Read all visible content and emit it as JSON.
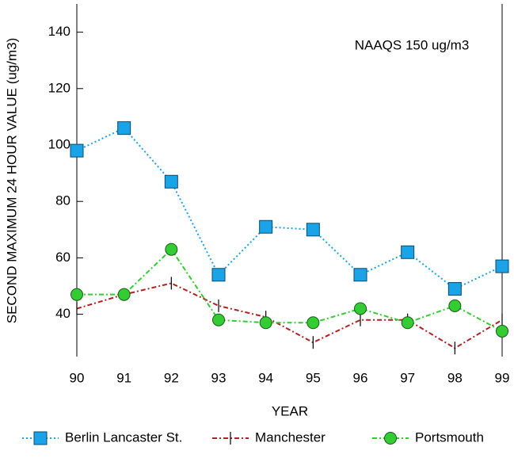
{
  "chart_data": {
    "type": "line",
    "y_label": "SECOND MAXIMUM 24 HOUR VALUE (ug/m3)",
    "x_label": "YEAR",
    "annotation": "NAAQS 150 ug/m3",
    "x": [
      90,
      91,
      92,
      93,
      94,
      95,
      96,
      97,
      98,
      99
    ],
    "xlim": [
      90,
      99
    ],
    "xticks": [
      90,
      91,
      92,
      93,
      94,
      95,
      96,
      97,
      98,
      99
    ],
    "ylim": [
      25,
      150
    ],
    "yticks": [
      40,
      60,
      80,
      100,
      120,
      140
    ],
    "series": [
      {
        "name": "Berlin Lancaster St.",
        "color": "#1aa3e6",
        "marker": "square",
        "dash": "2,3",
        "values": [
          98,
          106,
          87,
          54,
          71,
          70,
          54,
          62,
          49,
          57
        ]
      },
      {
        "name": "Manchester",
        "color": "#b22222",
        "marker": "tick",
        "dash": "6,3,2,3",
        "values": [
          42,
          47,
          51,
          43,
          39,
          30,
          38,
          38,
          28,
          38
        ]
      },
      {
        "name": "Portsmouth",
        "color": "#33cc33",
        "marker": "circle",
        "dash": "6,3,2,3",
        "values": [
          47,
          47,
          63,
          38,
          37,
          37,
          42,
          37,
          43,
          34
        ]
      }
    ]
  }
}
